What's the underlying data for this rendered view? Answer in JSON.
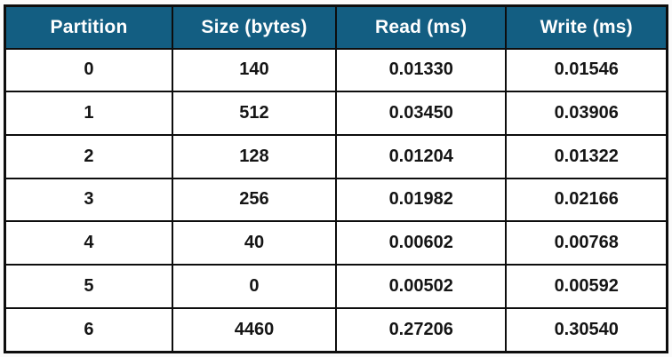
{
  "chart_data": {
    "type": "table",
    "title": "",
    "columns": [
      "Partition",
      "Size (bytes)",
      "Read (ms)",
      "Write (ms)"
    ],
    "rows": [
      [
        "0",
        "140",
        "0.01330",
        "0.01546"
      ],
      [
        "1",
        "512",
        "0.03450",
        "0.03906"
      ],
      [
        "2",
        "128",
        "0.01204",
        "0.01322"
      ],
      [
        "3",
        "256",
        "0.01982",
        "0.02166"
      ],
      [
        "4",
        "40",
        "0.00602",
        "0.00768"
      ],
      [
        "5",
        "0",
        "0.00502",
        "0.00592"
      ],
      [
        "6",
        "4460",
        "0.27206",
        "0.30540"
      ]
    ]
  },
  "colors": {
    "header_bg": "#135e82",
    "header_text": "#ffffff",
    "border_color": "#0d0d0d",
    "cell_text": "#151515",
    "page_bg": "#fbfbfb"
  }
}
